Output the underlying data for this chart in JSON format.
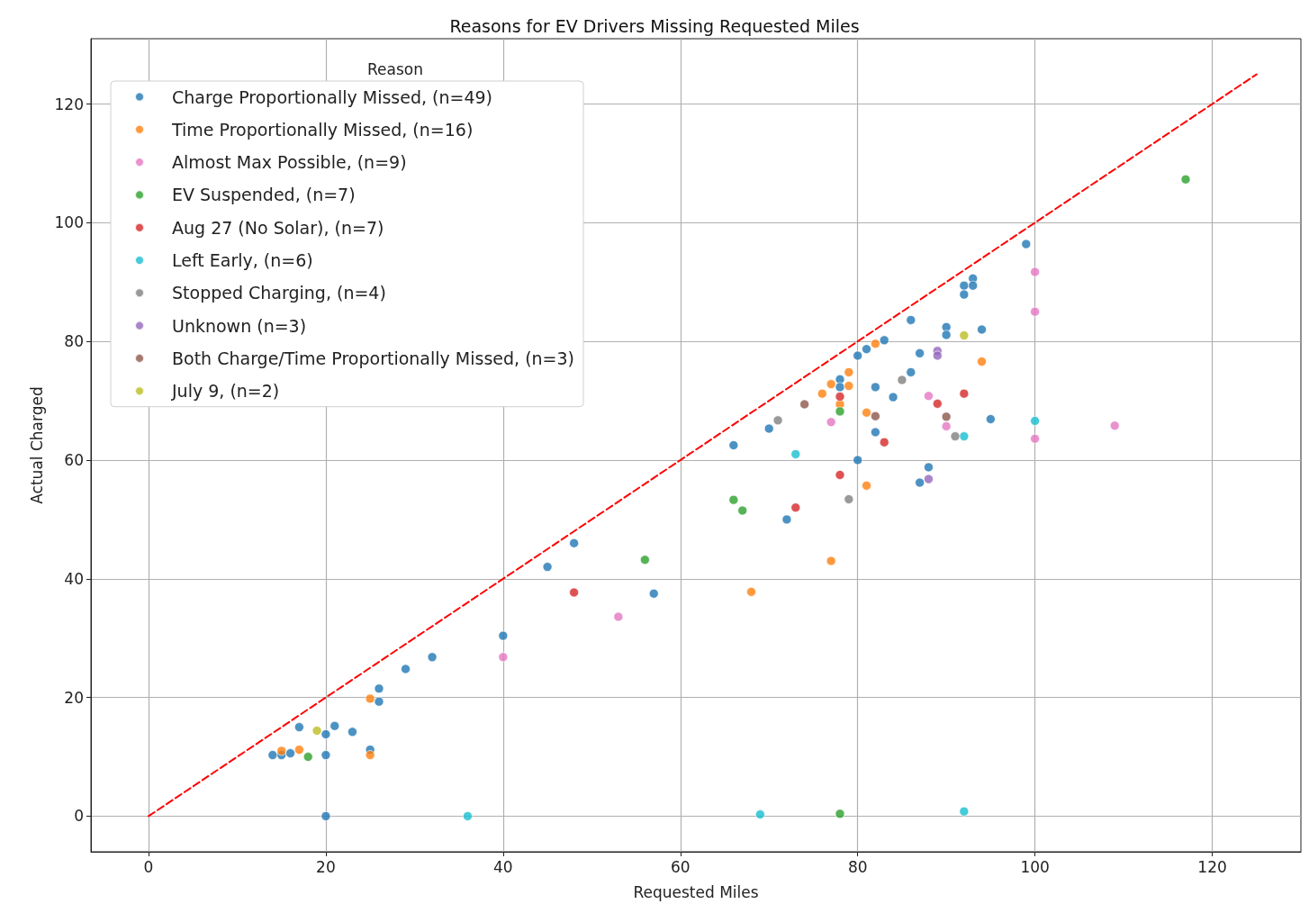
{
  "chart_data": {
    "type": "scatter",
    "title": "Reasons for EV Drivers Missing Requested Miles",
    "xlabel": "Requested Miles",
    "ylabel": "Actual Charged",
    "legend_title": "Reason",
    "xlim": [
      -6.5,
      130
    ],
    "ylim": [
      -6,
      131
    ],
    "xticks": [
      0,
      20,
      40,
      60,
      80,
      100,
      120
    ],
    "yticks": [
      0,
      20,
      40,
      60,
      80,
      100,
      120
    ],
    "grid": true,
    "legend": "top left",
    "marker": "circle",
    "series": [
      {
        "name": "Charge Proportionally Missed, (n=49)",
        "color": "#1f77b4",
        "x": [
          14,
          15,
          16,
          17,
          20,
          20,
          20,
          21,
          23,
          25,
          26,
          26,
          29,
          32,
          40,
          45,
          48,
          57,
          66,
          70,
          72,
          78,
          78,
          80,
          80,
          81,
          82,
          82,
          83,
          84,
          86,
          86,
          87,
          87,
          88,
          90,
          90,
          92,
          92,
          93,
          93,
          94,
          95,
          99
        ],
        "values": [
          10.3,
          10.3,
          10.6,
          15,
          10.3,
          0,
          13.8,
          15.2,
          14.2,
          11.2,
          21.5,
          19.3,
          24.8,
          26.8,
          30.4,
          42,
          46,
          37.5,
          62.5,
          65.3,
          50,
          73.6,
          72.3,
          77.6,
          60,
          78.7,
          72.3,
          64.7,
          80.2,
          70.6,
          83.6,
          74.8,
          78,
          56.2,
          58.8,
          82.4,
          81.1,
          89.4,
          87.9,
          90.6,
          89.4,
          82,
          66.9,
          96.4
        ]
      },
      {
        "name": "Time Proportionally Missed, (n=16)",
        "color": "#ff7f0e",
        "x": [
          15,
          17,
          25,
          25,
          68,
          76,
          77,
          77,
          78,
          79,
          79,
          81,
          81,
          82,
          94
        ],
        "values": [
          11,
          11.2,
          19.8,
          10.3,
          37.8,
          71.2,
          72.8,
          43,
          69.4,
          74.8,
          72.5,
          68,
          55.7,
          79.6,
          76.6
        ]
      },
      {
        "name": "Almost Max Possible, (n=9)",
        "color": "#e377c2",
        "x": [
          40,
          53,
          77,
          88,
          90,
          100,
          100,
          100,
          109
        ],
        "values": [
          26.8,
          33.6,
          66.4,
          70.8,
          65.7,
          91.7,
          85,
          63.6,
          65.8
        ]
      },
      {
        "name": "EV Suspended, (n=7)",
        "color": "#2ca02c",
        "x": [
          18,
          56,
          66,
          67,
          78,
          78,
          117
        ],
        "values": [
          10,
          43.2,
          53.3,
          51.5,
          68.2,
          0.4,
          107.3
        ]
      },
      {
        "name": "Aug 27 (No Solar), (n=7)",
        "color": "#d62728",
        "x": [
          48,
          73,
          78,
          78,
          83,
          89,
          92
        ],
        "values": [
          37.7,
          52,
          70.7,
          57.5,
          63,
          69.5,
          71.2
        ]
      },
      {
        "name": "Left Early, (n=6)",
        "color": "#17becf",
        "x": [
          36,
          69,
          73,
          92,
          92,
          100
        ],
        "values": [
          0,
          0.3,
          61,
          0.8,
          64,
          66.6
        ]
      },
      {
        "name": "Stopped Charging, (n=4)",
        "color": "#7f7f7f",
        "x": [
          71,
          79,
          85,
          91
        ],
        "values": [
          66.7,
          53.4,
          73.5,
          64
        ]
      },
      {
        "name": "Unknown (n=3)",
        "color": "#9467bd",
        "x": [
          88,
          89,
          89
        ],
        "values": [
          56.8,
          78.4,
          77.6
        ]
      },
      {
        "name": "Both Charge/Time Proportionally Missed, (n=3)",
        "color": "#8c564b",
        "x": [
          74,
          82,
          90
        ],
        "values": [
          69.4,
          67.4,
          67.3
        ]
      },
      {
        "name": "July 9, (n=2)",
        "color": "#bcbd22",
        "x": [
          19,
          92
        ],
        "values": [
          14.4,
          81
        ]
      },
      {
        "type": "line",
        "color": "#ff0000",
        "line_style": "dashed",
        "marker": "none",
        "x": [
          0,
          125
        ],
        "values": [
          0,
          125
        ]
      }
    ]
  }
}
